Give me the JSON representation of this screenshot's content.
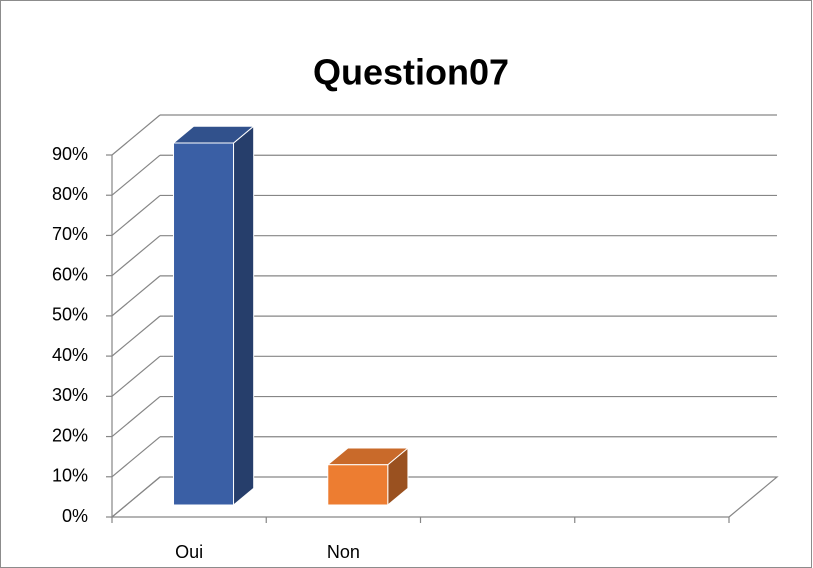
{
  "chart_data": {
    "type": "bar3d",
    "title": "Question07",
    "categories": [
      "Oui",
      "Non",
      null,
      null
    ],
    "values": [
      90,
      10,
      null,
      null
    ],
    "colors": [
      "#3a5fa5",
      "#ed7d31",
      null,
      null
    ],
    "ylim": [
      0,
      90
    ],
    "yticks": [
      {
        "value": 0,
        "label": "0%"
      },
      {
        "value": 10,
        "label": "10%"
      },
      {
        "value": 20,
        "label": "20%"
      },
      {
        "value": 30,
        "label": "30%"
      },
      {
        "value": 40,
        "label": "40%"
      },
      {
        "value": 50,
        "label": "50%"
      },
      {
        "value": 60,
        "label": "60%"
      },
      {
        "value": 70,
        "label": "70%"
      },
      {
        "value": 80,
        "label": "80%"
      },
      {
        "value": 90,
        "label": "90%"
      }
    ],
    "grid": true
  }
}
